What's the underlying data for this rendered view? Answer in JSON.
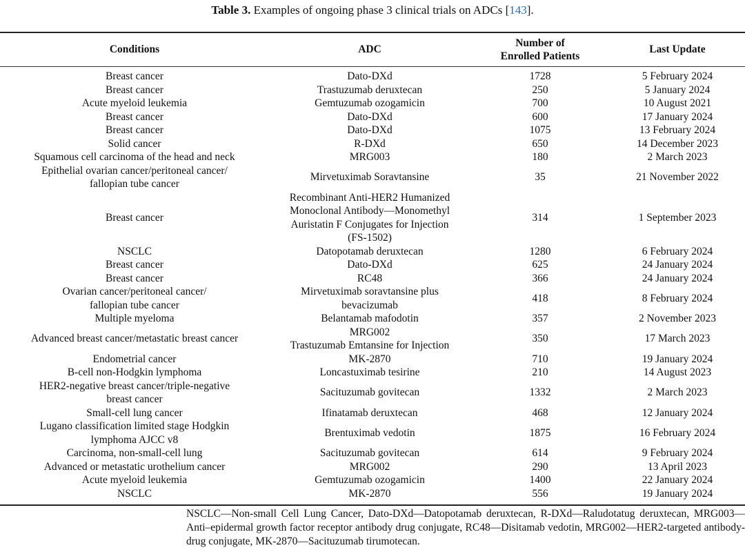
{
  "caption": {
    "label": "Table 3.",
    "text": " Examples of ongoing phase 3 clinical trials on ADCs [",
    "ref": "143",
    "end": "]."
  },
  "headers": [
    "Conditions",
    "ADC",
    "Number of\nEnrolled Patients",
    "Last Update"
  ],
  "rows": [
    [
      "Breast cancer",
      "Dato-DXd",
      "1728",
      "5 February 2024"
    ],
    [
      "Breast cancer",
      "Trastuzumab deruxtecan",
      "250",
      "5 January 2024"
    ],
    [
      "Acute myeloid leukemia",
      "Gemtuzumab ozogamicin",
      "700",
      "10 August 2021"
    ],
    [
      "Breast cancer",
      "Dato-DXd",
      "600",
      "17 January 2024"
    ],
    [
      "Breast cancer",
      "Dato-DXd",
      "1075",
      "13 February 2024"
    ],
    [
      "Solid cancer",
      "R-DXd",
      "650",
      "14 December 2023"
    ],
    [
      "Squamous cell carcinoma of the head and neck",
      "MRG003",
      "180",
      "2 March 2023"
    ],
    [
      "Epithelial ovarian cancer/peritoneal cancer/\nfallopian tube cancer",
      "Mirvetuximab Soravtansine",
      "35",
      "21 November 2022"
    ],
    [
      "Breast cancer",
      "Recombinant Anti-HER2 Humanized\nMonoclonal Antibody—Monomethyl\nAuristatin F Conjugates for Injection\n(FS-1502)",
      "314",
      "1 September 2023"
    ],
    [
      "NSCLC",
      "Datopotamab deruxtecan",
      "1280",
      "6 February 2024"
    ],
    [
      "Breast cancer",
      "Dato-DXd",
      "625",
      "24 January 2024"
    ],
    [
      "Breast cancer",
      "RC48",
      "366",
      "24 January 2024"
    ],
    [
      "Ovarian cancer/peritoneal cancer/\nfallopian tube cancer",
      "Mirvetuximab soravtansine plus\nbevacizumab",
      "418",
      "8 February 2024"
    ],
    [
      "Multiple myeloma",
      "Belantamab mafodotin",
      "357",
      "2 November 2023"
    ],
    [
      "Advanced breast cancer/metastatic breast cancer",
      "MRG002\nTrastuzumab Emtansine for Injection",
      "350",
      "17 March 2023"
    ],
    [
      "Endometrial cancer",
      "MK-2870",
      "710",
      "19 January 2024"
    ],
    [
      "B-cell non-Hodgkin lymphoma",
      "Loncastuximab tesirine",
      "210",
      "14 August 2023"
    ],
    [
      "HER2-negative breast cancer/triple-negative\nbreast cancer",
      "Sacituzumab govitecan",
      "1332",
      "2 March 2023"
    ],
    [
      "Small-cell lung cancer",
      "Ifinatamab deruxtecan",
      "468",
      "12 January 2024"
    ],
    [
      "Lugano classification limited stage Hodgkin\nlymphoma AJCC v8",
      "Brentuximab vedotin",
      "1875",
      "16 February 2024"
    ],
    [
      "Carcinoma, non-small-cell lung",
      "Sacituzumab govitecan",
      "614",
      "9 February 2024"
    ],
    [
      "Advanced or metastatic urothelium cancer",
      "MRG002",
      "290",
      "13 April 2023"
    ],
    [
      "Acute myeloid leukemia",
      "Gemtuzumab ozogamicin",
      "1400",
      "22 January 2024"
    ],
    [
      "NSCLC",
      "MK-2870",
      "556",
      "19 January 2024"
    ]
  ],
  "footnote": "NSCLC—Non-small Cell Lung Cancer, Dato-DXd—Datopotamab deruxtecan, R-DXd—Raludotatug deruxtecan, MRG003—Anti–epidermal growth factor receptor antibody drug conjugate, RC48—Disitamab vedotin, MRG002—HER2-targeted antibody-drug conjugate, MK-2870—Sacituzumab tirumotecan."
}
